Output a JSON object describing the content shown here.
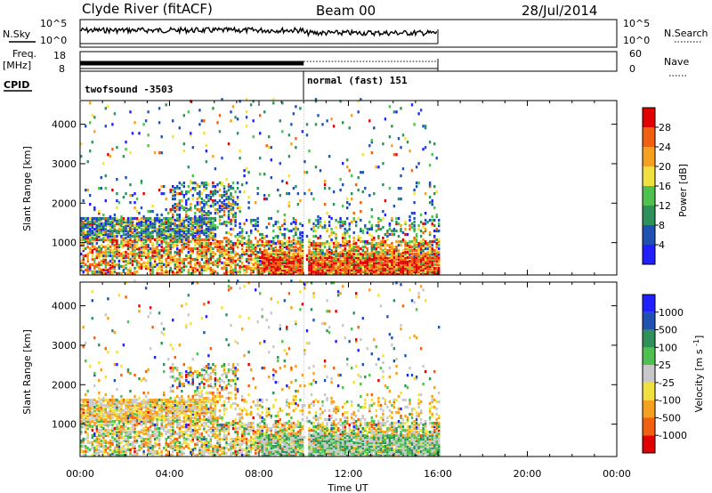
{
  "header": {
    "station": "Clyde River (fitACF)",
    "beam": "Beam 00",
    "date": "28/Jul/2014"
  },
  "sky_panel": {
    "left_label": "N.Sky",
    "left_ticks": [
      "10^5",
      "10^0"
    ],
    "right_ticks": [
      "10^5",
      "10^0"
    ],
    "right_label": "N.Search"
  },
  "freq_panel": {
    "left_label_1": "Freq.",
    "left_label_2": "[MHz]",
    "left_ticks": [
      "18",
      "8"
    ],
    "right_ticks": [
      "60",
      "0"
    ],
    "right_label": "Nave"
  },
  "cpid": {
    "label": "CPID",
    "segments": [
      {
        "text": "twofsound -3503",
        "start_hour": 0,
        "end_hour": 10
      },
      {
        "text": "normal (fast) 151",
        "start_hour": 10,
        "end_hour": 16
      }
    ]
  },
  "colors": {
    "power_scale": [
      "#2020ff",
      "#2050b0",
      "#30905a",
      "#50c050",
      "#f0e040",
      "#f5a020",
      "#f06010",
      "#e00000"
    ],
    "velocity_scale": [
      "#e00000",
      "#f06010",
      "#f5a020",
      "#f0e040",
      "#c8c8c8",
      "#50c050",
      "#30905a",
      "#2050b0",
      "#2020ff"
    ]
  },
  "chart_data": [
    {
      "type": "heatmap",
      "name_key": "power",
      "ylabel": "Slant Range [km]",
      "xlabel": "",
      "x_range_hours": [
        0,
        24
      ],
      "ylim": [
        180,
        4600
      ],
      "yticks": [
        1000,
        2000,
        3000,
        4000
      ],
      "colorbar": {
        "label": "Power [dB]",
        "ticks": [
          "4",
          "8",
          "12",
          "16",
          "20",
          "24",
          "28"
        ],
        "range": [
          0,
          32
        ]
      }
    },
    {
      "type": "heatmap",
      "name_key": "velocity",
      "ylabel": "Slant Range [km]",
      "xlabel": "Time UT",
      "x_range_hours": [
        0,
        24
      ],
      "ylim": [
        180,
        4600
      ],
      "yticks": [
        1000,
        2000,
        3000,
        4000
      ],
      "xticks": [
        "00:00",
        "04:00",
        "08:00",
        "12:00",
        "16:00",
        "20:00",
        "00:00"
      ],
      "colorbar": {
        "label": "Velocity [m s^-1]",
        "ticks": [
          "-1000",
          "-500",
          "-100",
          "-25",
          "25",
          "100",
          "500",
          "1000"
        ]
      }
    }
  ]
}
